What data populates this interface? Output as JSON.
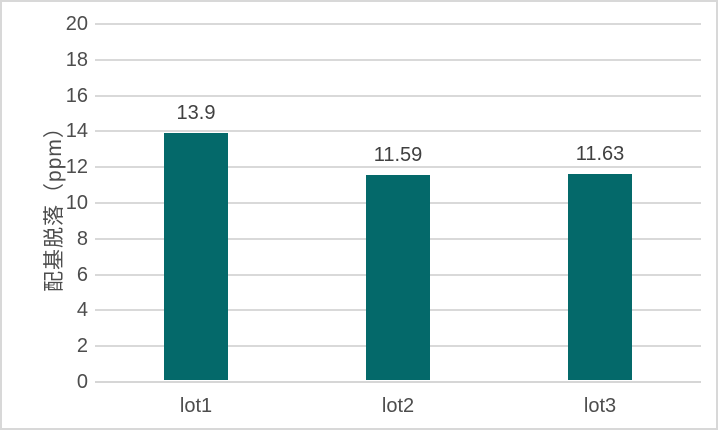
{
  "chart_data": {
    "type": "bar",
    "categories": [
      "lot1",
      "lot2",
      "lot3"
    ],
    "values": [
      13.9,
      11.59,
      11.63
    ],
    "data_labels": [
      "13.9",
      "11.59",
      "11.63"
    ],
    "title": "",
    "xlabel": "",
    "ylabel": "配基脱落（ppm）",
    "ylim": [
      0,
      20
    ],
    "ytick_step": 2,
    "ytick_labels": [
      "0",
      "2",
      "4",
      "6",
      "8",
      "10",
      "12",
      "14",
      "16",
      "18",
      "20"
    ],
    "grid": true,
    "legend_position": "none",
    "bar_color": "#04696a",
    "gridline_color": "#d9d9d9",
    "axis_line_color": "#d6d6d6",
    "tick_text_color": "#4d4d4d",
    "data_label_color": "#404040",
    "frame_border_color": "#d8d8d8"
  }
}
